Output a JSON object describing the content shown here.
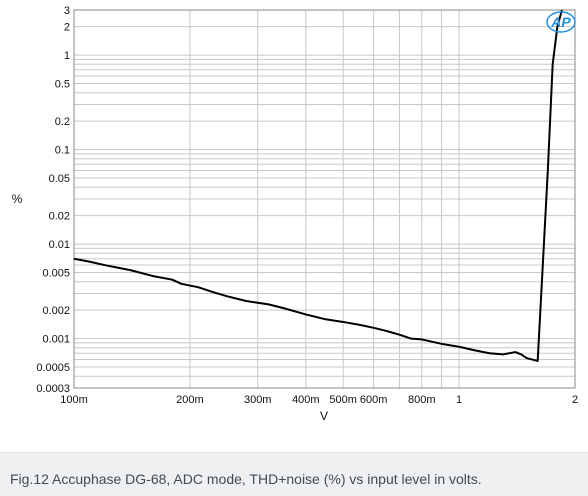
{
  "chart_data": {
    "type": "line",
    "title": "",
    "xlabel": "V",
    "ylabel": "%",
    "x_scale": "log",
    "y_scale": "log",
    "xlim": [
      0.1,
      2
    ],
    "ylim": [
      0.0003,
      3
    ],
    "grid": true,
    "x_ticks": [
      {
        "value": 0.1,
        "label": "100m"
      },
      {
        "value": 0.2,
        "label": "200m"
      },
      {
        "value": 0.3,
        "label": "300m"
      },
      {
        "value": 0.4,
        "label": "400m"
      },
      {
        "value": 0.5,
        "label": "500m"
      },
      {
        "value": 0.6,
        "label": "600m"
      },
      {
        "value": 0.8,
        "label": "800m"
      },
      {
        "value": 1,
        "label": "1"
      },
      {
        "value": 2,
        "label": "2"
      }
    ],
    "y_ticks": [
      {
        "value": 3,
        "label": "3"
      },
      {
        "value": 2,
        "label": "2"
      },
      {
        "value": 1,
        "label": "1"
      },
      {
        "value": 0.5,
        "label": "0.5"
      },
      {
        "value": 0.2,
        "label": "0.2"
      },
      {
        "value": 0.1,
        "label": "0.1"
      },
      {
        "value": 0.05,
        "label": "0.05"
      },
      {
        "value": 0.02,
        "label": "0.02"
      },
      {
        "value": 0.01,
        "label": "0.01"
      },
      {
        "value": 0.005,
        "label": "0.005"
      },
      {
        "value": 0.002,
        "label": "0.002"
      },
      {
        "value": 0.001,
        "label": "0.001"
      },
      {
        "value": 0.0005,
        "label": "0.0005"
      },
      {
        "value": 0.0003,
        "label": "0.0003"
      }
    ],
    "series": [
      {
        "color": "#000000",
        "x": [
          0.1,
          0.11,
          0.12,
          0.14,
          0.16,
          0.18,
          0.19,
          0.21,
          0.23,
          0.25,
          0.28,
          0.32,
          0.35,
          0.4,
          0.45,
          0.5,
          0.55,
          0.6,
          0.65,
          0.7,
          0.75,
          0.8,
          0.9,
          1.0,
          1.1,
          1.2,
          1.3,
          1.4,
          1.45,
          1.5,
          1.6,
          1.7,
          1.75,
          1.8,
          1.85
        ],
        "y": [
          0.007,
          0.0065,
          0.006,
          0.0053,
          0.0046,
          0.0042,
          0.0038,
          0.0035,
          0.0031,
          0.0028,
          0.0025,
          0.0023,
          0.0021,
          0.0018,
          0.0016,
          0.0015,
          0.0014,
          0.0013,
          0.0012,
          0.0011,
          0.001,
          0.00098,
          0.00088,
          0.00082,
          0.00075,
          0.0007,
          0.00068,
          0.00072,
          0.00068,
          0.00062,
          0.00058,
          0.06,
          0.8,
          2.0,
          3.0
        ]
      }
    ]
  },
  "caption": "Fig.12 Accuphase DG-68, ADC mode, THD+noise (%) vs input level in volts.",
  "logo": {
    "text": "AP",
    "color": "#1e90e0"
  },
  "colors": {
    "grid": "#c8c8c8",
    "frame": "#888888",
    "line": "#000000",
    "caption_bg": "#eef0f2",
    "caption_text": "#444a52"
  }
}
